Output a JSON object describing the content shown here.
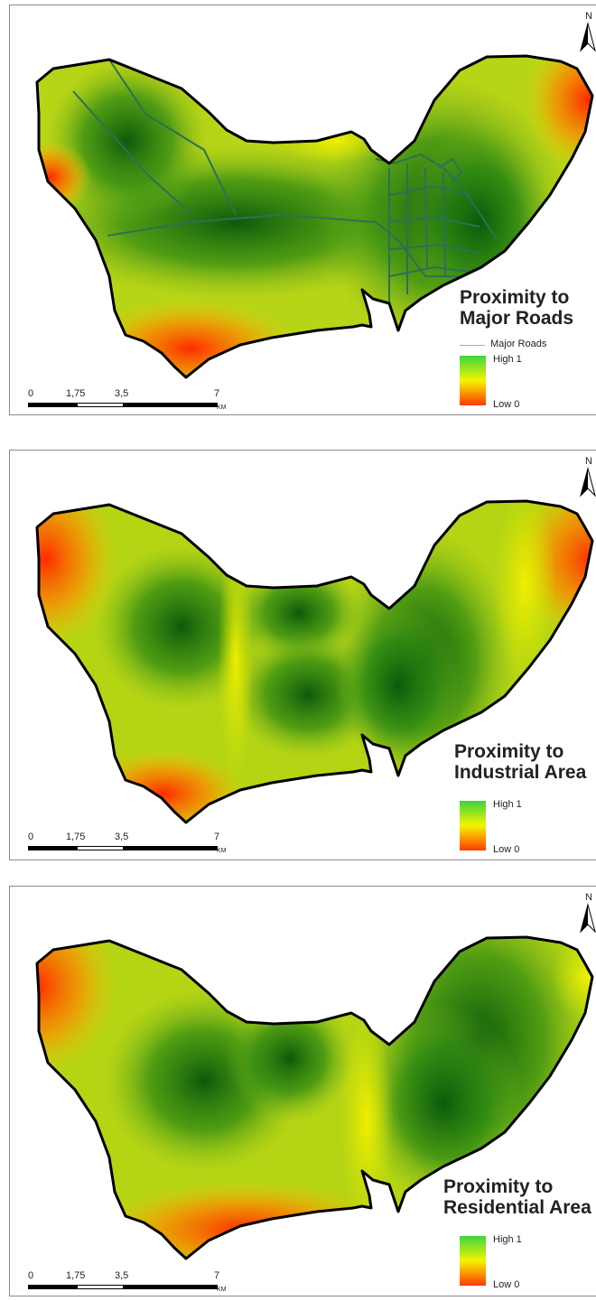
{
  "panels": [
    {
      "title_line1": "Proximity to",
      "title_line2": "Major Roads",
      "legend_road": "Major Roads",
      "legend_high": "High 1",
      "legend_low": "Low 0"
    },
    {
      "title_line1": "Proximity to",
      "title_line2": "Industrial Area",
      "legend_high": "High 1",
      "legend_low": "Low 0"
    },
    {
      "title_line1": "Proximity to",
      "title_line2": "Residential Area",
      "legend_high": "High 1",
      "legend_low": "Low 0"
    }
  ],
  "scalebar": {
    "ticks": [
      "0",
      "1,75",
      "3,5",
      "7"
    ],
    "unit": "KM"
  },
  "north_label": "N",
  "colors": {
    "high": "#3cd63c",
    "mid": "#f4f400",
    "low": "#ff3a00",
    "dark_green": "#0b5a0b",
    "road": "#2f6f55"
  }
}
